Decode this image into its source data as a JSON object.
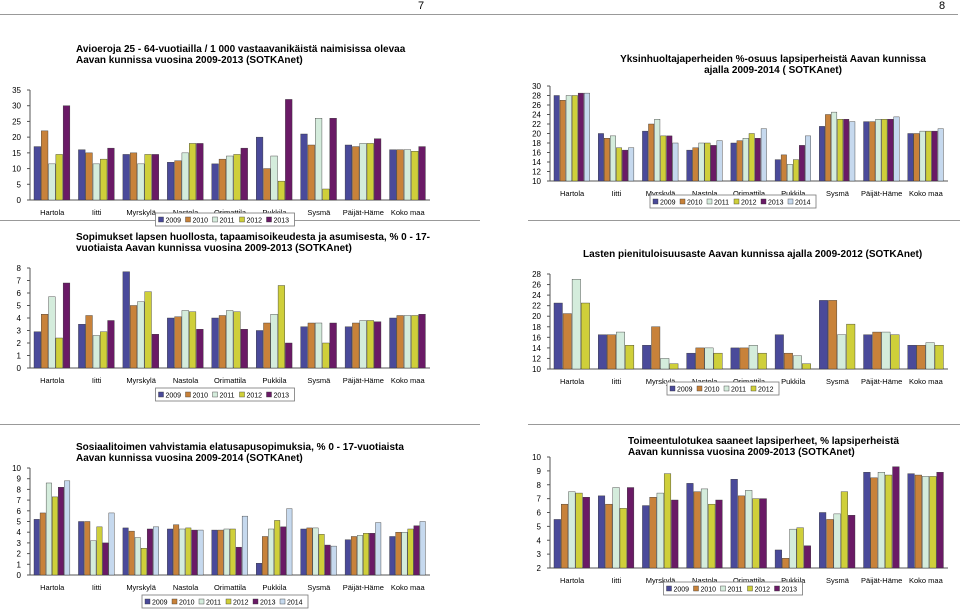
{
  "page": {
    "numbers": [
      "7",
      "8"
    ]
  },
  "colors": {
    "2009": "#4a4a9a",
    "2010": "#c8823a",
    "2011": "#d4ecdc",
    "2012": "#cfcf3a",
    "2013": "#6a1a66",
    "2014": "#c6d9ee"
  },
  "chart_data": [
    {
      "type": "bar",
      "title": "Avioeroja 25 - 64-vuotiailla / 1 000 vastaavanikäistä naimisissa olevaa Aavan kunnissa vuosina 2009-2013 (SOTKAnet)",
      "categories": [
        "Hartola",
        "Iitti",
        "Myrskylä",
        "Nastola",
        "Orimattila",
        "Pukkila",
        "Sysmä",
        "Päijät-Häme",
        "Koko maa"
      ],
      "ylim": [
        0,
        35
      ],
      "yticks": [
        "0",
        "5",
        "10",
        "15",
        "20",
        "25",
        "30",
        "35"
      ],
      "series": [
        {
          "name": "2009",
          "values": [
            17,
            16,
            14.5,
            12,
            11.5,
            20,
            21,
            17.5,
            16
          ]
        },
        {
          "name": "2010",
          "values": [
            22,
            15,
            15,
            12.5,
            13,
            10,
            17.5,
            17,
            16
          ]
        },
        {
          "name": "2011",
          "values": [
            11.5,
            11.5,
            11.5,
            15,
            14,
            14,
            26,
            18,
            16
          ]
        },
        {
          "name": "2012",
          "values": [
            14.5,
            13,
            14.5,
            18,
            14.5,
            6,
            3.5,
            18,
            15.5
          ]
        },
        {
          "name": "2013",
          "values": [
            30,
            16.5,
            14.5,
            18,
            16.5,
            32,
            26,
            19.5,
            17
          ]
        }
      ]
    },
    {
      "type": "bar",
      "title": "Yksinhuoltajaperheiden %-osuus lapsiperheistä Aavan kunnissa ajalla 2009-2014 ( SOTKAnet)",
      "categories": [
        "Hartola",
        "Iitti",
        "Myrskylä",
        "Nastola",
        "Orimattila",
        "Pukkila",
        "Sysmä",
        "Päijät-Häme",
        "Koko maa"
      ],
      "ylim": [
        10,
        30
      ],
      "yticks": [
        "10",
        "12",
        "14",
        "16",
        "18",
        "20",
        "22",
        "24",
        "26",
        "28",
        "30"
      ],
      "series": [
        {
          "name": "2009",
          "values": [
            28,
            20,
            20.5,
            16.5,
            18,
            14.5,
            21.5,
            22.5,
            20
          ]
        },
        {
          "name": "2010",
          "values": [
            27,
            19,
            22,
            17,
            18.5,
            15.5,
            24,
            22.5,
            20
          ]
        },
        {
          "name": "2011",
          "values": [
            28,
            19.5,
            23,
            18,
            19,
            13.5,
            24.5,
            23,
            20.5
          ]
        },
        {
          "name": "2012",
          "values": [
            28,
            17,
            19.5,
            18,
            20,
            14.5,
            23,
            23,
            20.5
          ]
        },
        {
          "name": "2013",
          "values": [
            28.5,
            16.5,
            19.5,
            17.5,
            19,
            17.5,
            23,
            23,
            20.5
          ]
        },
        {
          "name": "2014",
          "values": [
            28.5,
            17,
            18,
            18.5,
            21,
            19.5,
            22.5,
            23.5,
            21
          ]
        }
      ]
    },
    {
      "type": "bar",
      "title": "Sopimukset lapsen huollosta, tapaamisoikeudesta ja asumisesta, % 0 - 17-vuotiaista Aavan kunnissa vuosina 2009-2013 (SOTKAnet)",
      "categories": [
        "Hartola",
        "Iitti",
        "Myrskylä",
        "Nastola",
        "Orimattila",
        "Pukkila",
        "Sysmä",
        "Päijät-Häme",
        "Koko maa"
      ],
      "ylim": [
        0,
        8
      ],
      "yticks": [
        "0",
        "1",
        "2",
        "3",
        "4",
        "5",
        "6",
        "7",
        "8"
      ],
      "series": [
        {
          "name": "2009",
          "values": [
            2.9,
            3.5,
            7.7,
            4,
            4,
            3,
            3.3,
            3.3,
            4
          ]
        },
        {
          "name": "2010",
          "values": [
            4.3,
            4.2,
            5,
            4.1,
            4.2,
            3.6,
            3.6,
            3.6,
            4.2
          ]
        },
        {
          "name": "2011",
          "values": [
            5.7,
            2.6,
            5.3,
            4.6,
            4.6,
            4.3,
            3.6,
            3.8,
            4.2
          ]
        },
        {
          "name": "2012",
          "values": [
            2.4,
            2.9,
            6.1,
            4.5,
            4.5,
            6.6,
            2,
            3.8,
            4.2
          ]
        },
        {
          "name": "2013",
          "values": [
            6.8,
            3.8,
            2.7,
            3.1,
            3.1,
            2,
            3.6,
            3.7,
            4.3
          ]
        }
      ]
    },
    {
      "type": "bar",
      "title": "Lasten pienituloisuusaste Aavan kunnissa ajalla 2009-2012 (SOTKAnet)",
      "categories": [
        "Hartola",
        "Iitti",
        "Myrskylä",
        "Nastola",
        "Orimattila",
        "Pukkila",
        "Sysmä",
        "Päijät-Häme",
        "Koko maa"
      ],
      "ylim": [
        10,
        28
      ],
      "yticks": [
        "10",
        "12",
        "14",
        "16",
        "18",
        "20",
        "22",
        "24",
        "26",
        "28"
      ],
      "series": [
        {
          "name": "2009",
          "values": [
            22.5,
            16.5,
            14.5,
            13,
            14,
            16.5,
            23,
            16.5,
            14.5
          ]
        },
        {
          "name": "2010",
          "values": [
            20.5,
            16.5,
            18,
            14,
            14,
            13,
            23,
            17,
            14.5
          ]
        },
        {
          "name": "2011",
          "values": [
            27,
            17,
            12,
            14,
            14.5,
            12.5,
            16.5,
            17,
            15
          ]
        },
        {
          "name": "2012",
          "values": [
            22.5,
            14.5,
            11,
            13,
            13,
            11,
            18.5,
            16.5,
            14.5
          ]
        }
      ]
    },
    {
      "type": "bar",
      "title": "Sosiaalitoimen vahvistamia elatusapusopimuksia, % 0 - 17-vuotiaista Aavan kunnissa vuosina 2009-2014 (SOTKAnet)",
      "categories": [
        "Hartola",
        "Iitti",
        "Myrskylä",
        "Nastola",
        "Orimattila",
        "Pukkila",
        "Sysmä",
        "Päijät-Häme",
        "Koko maa"
      ],
      "ylim": [
        0,
        10
      ],
      "yticks": [
        "0",
        "1",
        "2",
        "3",
        "4",
        "5",
        "6",
        "7",
        "8",
        "9",
        "10"
      ],
      "series": [
        {
          "name": "2009",
          "values": [
            5.2,
            5,
            4.4,
            4.3,
            4.2,
            1.1,
            4.3,
            3.3,
            3.6
          ]
        },
        {
          "name": "2010",
          "values": [
            5.8,
            5,
            4.1,
            4.7,
            4.2,
            3.6,
            4.4,
            3.6,
            4
          ]
        },
        {
          "name": "2011",
          "values": [
            8.6,
            3.2,
            3.5,
            4.3,
            4.3,
            4.3,
            4.4,
            3.7,
            4
          ]
        },
        {
          "name": "2012",
          "values": [
            7.3,
            4.5,
            2.5,
            4.4,
            4.3,
            5.1,
            3.8,
            3.9,
            4.3
          ]
        },
        {
          "name": "2013",
          "values": [
            8.2,
            3,
            4.3,
            4.2,
            2.6,
            4.5,
            2.8,
            3.9,
            4.6
          ]
        },
        {
          "name": "2014",
          "values": [
            8.8,
            5.8,
            4.5,
            4.2,
            5.5,
            6.2,
            2.7,
            4.9,
            5
          ]
        }
      ]
    },
    {
      "type": "bar",
      "title": "Toimeentulotukea saaneet lapsiperheet, % lapsiperheistä Aavan kunnissa vuosina 2009-2013 (SOTKAnet)",
      "categories": [
        "Hartola",
        "Iitti",
        "Myrskylä",
        "Nastola",
        "Orimattila",
        "Pukkila",
        "Sysmä",
        "Päijät-Häme",
        "Koko maa"
      ],
      "ylim": [
        2,
        10
      ],
      "yticks": [
        "2",
        "3",
        "4",
        "5",
        "6",
        "7",
        "8",
        "9",
        "10"
      ],
      "series": [
        {
          "name": "2009",
          "values": [
            5.5,
            7.2,
            6.5,
            8.1,
            8.4,
            3.3,
            6,
            8.9,
            8.8
          ]
        },
        {
          "name": "2010",
          "values": [
            6.6,
            6.6,
            7.1,
            7.5,
            7.2,
            2.7,
            5.5,
            8.5,
            8.7
          ]
        },
        {
          "name": "2011",
          "values": [
            7.5,
            7.8,
            7.4,
            7.7,
            7.6,
            4.8,
            5.9,
            8.9,
            8.6
          ]
        },
        {
          "name": "2012",
          "values": [
            7.4,
            6.3,
            8.8,
            6.6,
            7,
            4.9,
            7.5,
            8.7,
            8.6
          ]
        },
        {
          "name": "2013",
          "values": [
            7.1,
            7.8,
            6.9,
            6.9,
            7,
            3.6,
            5.8,
            9.3,
            8.9
          ]
        }
      ]
    }
  ]
}
